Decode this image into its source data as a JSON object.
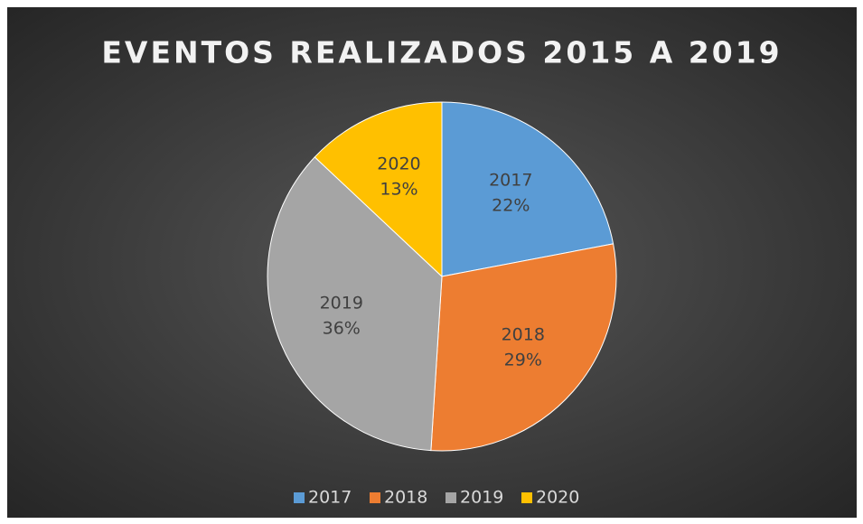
{
  "chart_data": {
    "type": "pie",
    "title": "EVENTOS REALIZADOS 2015 A 2019",
    "categories": [
      "2017",
      "2018",
      "2019",
      "2020"
    ],
    "values": [
      22,
      29,
      36,
      13
    ],
    "value_labels": [
      "22%",
      "29%",
      "36%",
      "13%"
    ],
    "colors": [
      "#5b9bd5",
      "#ed7d31",
      "#a5a5a5",
      "#ffc000"
    ],
    "legend": "bottom"
  }
}
